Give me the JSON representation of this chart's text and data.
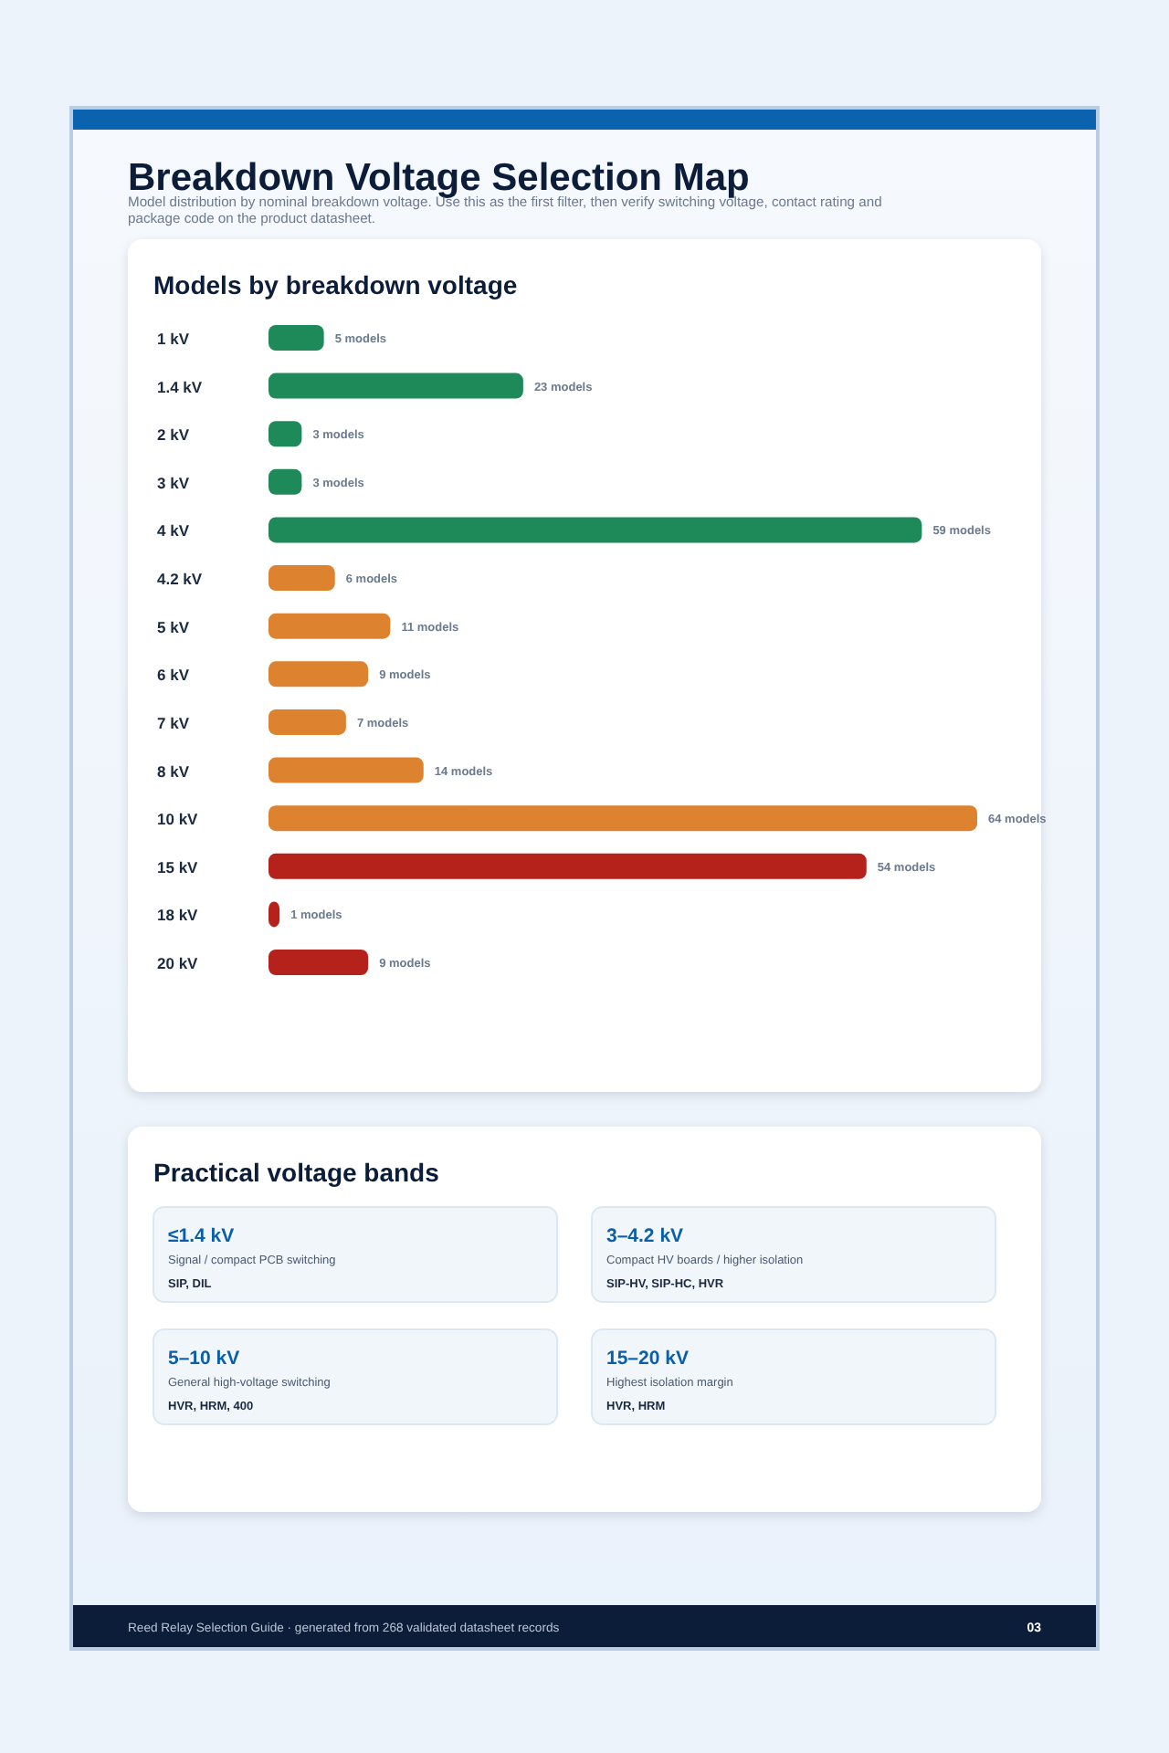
{
  "chart_data": [
    {
      "type": "other",
      "title": "Breakdown Voltage Selection Map",
      "subtitle": "Model distribution by nominal breakdown voltage. Use this as the first filter, then verify switching voltage, contact rating and package code on the product datasheet.",
      "annotations": [
        "Reed Relay Selection Guide · generated from 268 validated datasheet records",
        "03"
      ]
    },
    {
      "type": "bar",
      "orientation": "horizontal",
      "title": "Models by breakdown voltage",
      "categories": [
        "1 kV",
        "1.4 kV",
        "2 kV",
        "3 kV",
        "4 kV",
        "4.2 kV",
        "5 kV",
        "6 kV",
        "7 kV",
        "8 kV",
        "10 kV",
        "15 kV",
        "18 kV",
        "20 kV"
      ],
      "values": [
        5,
        23,
        3,
        3,
        59,
        6,
        11,
        9,
        7,
        14,
        64,
        54,
        1,
        9
      ],
      "colors": [
        "#1e8a5a",
        "#1e8a5a",
        "#1e8a5a",
        "#1e8a5a",
        "#1e8a5a",
        "#dd8330",
        "#dd8330",
        "#dd8330",
        "#dd8330",
        "#dd8330",
        "#dd8330",
        "#b5221c",
        "#b5221c",
        "#b5221c"
      ],
      "value_labels": [
        "5 models",
        "23 models",
        "3 models",
        "3 models",
        "59 models",
        "6 models",
        "11 models",
        "9 models",
        "7 models",
        "14 models",
        "64 models",
        "54 models",
        "1 models",
        "9 models"
      ]
    },
    {
      "type": "other",
      "title": "Practical voltage bands",
      "annotations": [
        "≤1.4 kV",
        "Signal / compact PCB switching",
        "SIP, DIL",
        "3–4.2 kV",
        "Compact HV boards / higher isolation",
        "SIP-HV, SIP-HC, HVR",
        "5–10 kV",
        "General high-voltage switching",
        "HVR, HRM, 400",
        "15–20 kV",
        "Highest isolation margin",
        "HVR, HRM"
      ]
    }
  ]
}
